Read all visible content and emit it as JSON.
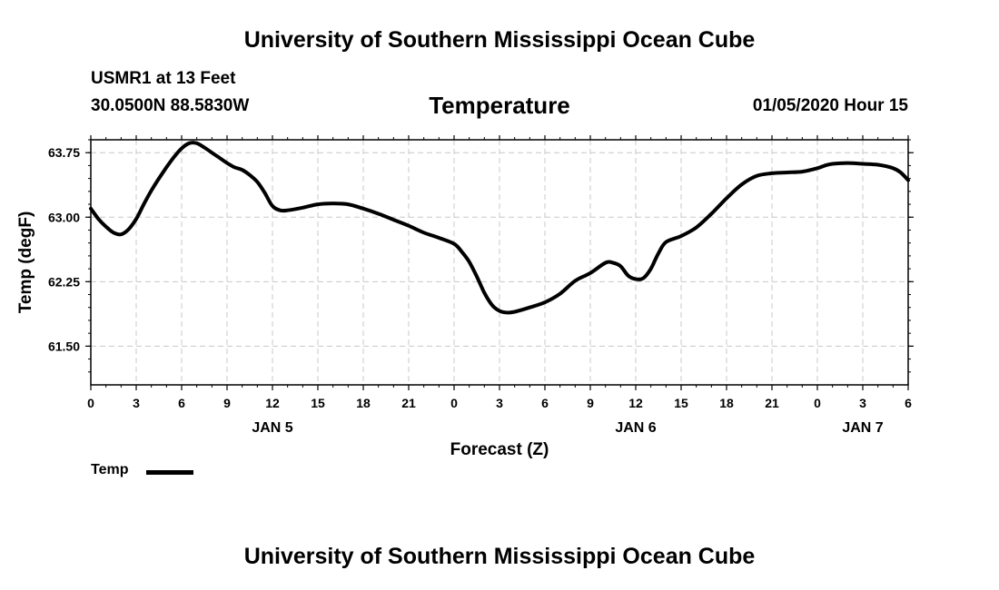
{
  "header": {
    "title_top": "University of Southern Mississippi Ocean Cube",
    "station": "USMR1 at 13 Feet",
    "coords": "30.0500N 88.5830W",
    "variable": "Temperature",
    "datetime": "01/05/2020 Hour 15",
    "title_bottom": "University of Southern Mississippi Ocean Cube"
  },
  "chart_data": {
    "type": "line",
    "title": "Temperature",
    "xlabel": "Forecast (Z)",
    "ylabel": "Temp (degF)",
    "xlim": [
      0,
      54
    ],
    "ylim": [
      61.05,
      63.9
    ],
    "grid": true,
    "legend": "bottom-left",
    "x_ticks": [
      0,
      3,
      6,
      9,
      12,
      15,
      18,
      21,
      24,
      27,
      30,
      33,
      36,
      39,
      42,
      45,
      48,
      51,
      54
    ],
    "x_tick_labels": [
      "0",
      "3",
      "6",
      "9",
      "12",
      "15",
      "18",
      "21",
      "0",
      "3",
      "6",
      "9",
      "12",
      "15",
      "18",
      "21",
      "0",
      "3",
      "6"
    ],
    "day_labels": [
      {
        "x": 12,
        "label": "JAN 5"
      },
      {
        "x": 36,
        "label": "JAN 6"
      },
      {
        "x": 51,
        "label": "JAN 7"
      }
    ],
    "y_ticks": [
      61.5,
      62.25,
      63.0,
      63.75
    ],
    "y_tick_labels": [
      "61.50",
      "62.25",
      "63.00",
      "63.75"
    ],
    "series": [
      {
        "name": "Temp",
        "color": "#000000",
        "x": [
          0,
          0.5,
          1,
          1.5,
          2,
          2.5,
          3,
          3.5,
          4,
          4.5,
          5,
          5.5,
          6,
          6.5,
          7,
          7.5,
          8,
          8.5,
          9,
          9.5,
          10,
          10.5,
          11,
          11.5,
          12,
          12.5,
          13,
          14,
          15,
          16,
          17,
          18,
          19,
          20,
          21,
          22,
          23,
          24,
          24.5,
          25,
          25.5,
          26,
          26.5,
          27,
          27.5,
          28,
          29,
          30,
          31,
          32,
          33,
          34,
          34.5,
          35,
          35.5,
          36,
          36.5,
          37,
          37.5,
          38,
          39,
          40,
          41,
          42,
          43,
          44,
          45,
          46,
          47,
          48,
          48.5,
          49,
          50,
          51,
          52,
          53,
          53.5,
          54
        ],
        "values": [
          63.1,
          62.98,
          62.89,
          62.82,
          62.8,
          62.86,
          62.98,
          63.15,
          63.31,
          63.45,
          63.58,
          63.7,
          63.8,
          63.86,
          63.86,
          63.81,
          63.75,
          63.69,
          63.63,
          63.58,
          63.55,
          63.49,
          63.41,
          63.28,
          63.13,
          63.08,
          63.08,
          63.11,
          63.15,
          63.16,
          63.15,
          63.1,
          63.04,
          62.97,
          62.9,
          62.82,
          62.76,
          62.69,
          62.6,
          62.48,
          62.31,
          62.12,
          61.98,
          61.91,
          61.89,
          61.9,
          61.95,
          62.01,
          62.11,
          62.26,
          62.35,
          62.47,
          62.47,
          62.43,
          62.32,
          62.28,
          62.29,
          62.4,
          62.58,
          62.71,
          62.78,
          62.88,
          63.04,
          63.22,
          63.38,
          63.48,
          63.51,
          63.52,
          63.53,
          63.57,
          63.6,
          63.62,
          63.63,
          63.62,
          63.61,
          63.57,
          63.52,
          63.43
        ]
      }
    ]
  },
  "legend": {
    "label": "Temp"
  }
}
